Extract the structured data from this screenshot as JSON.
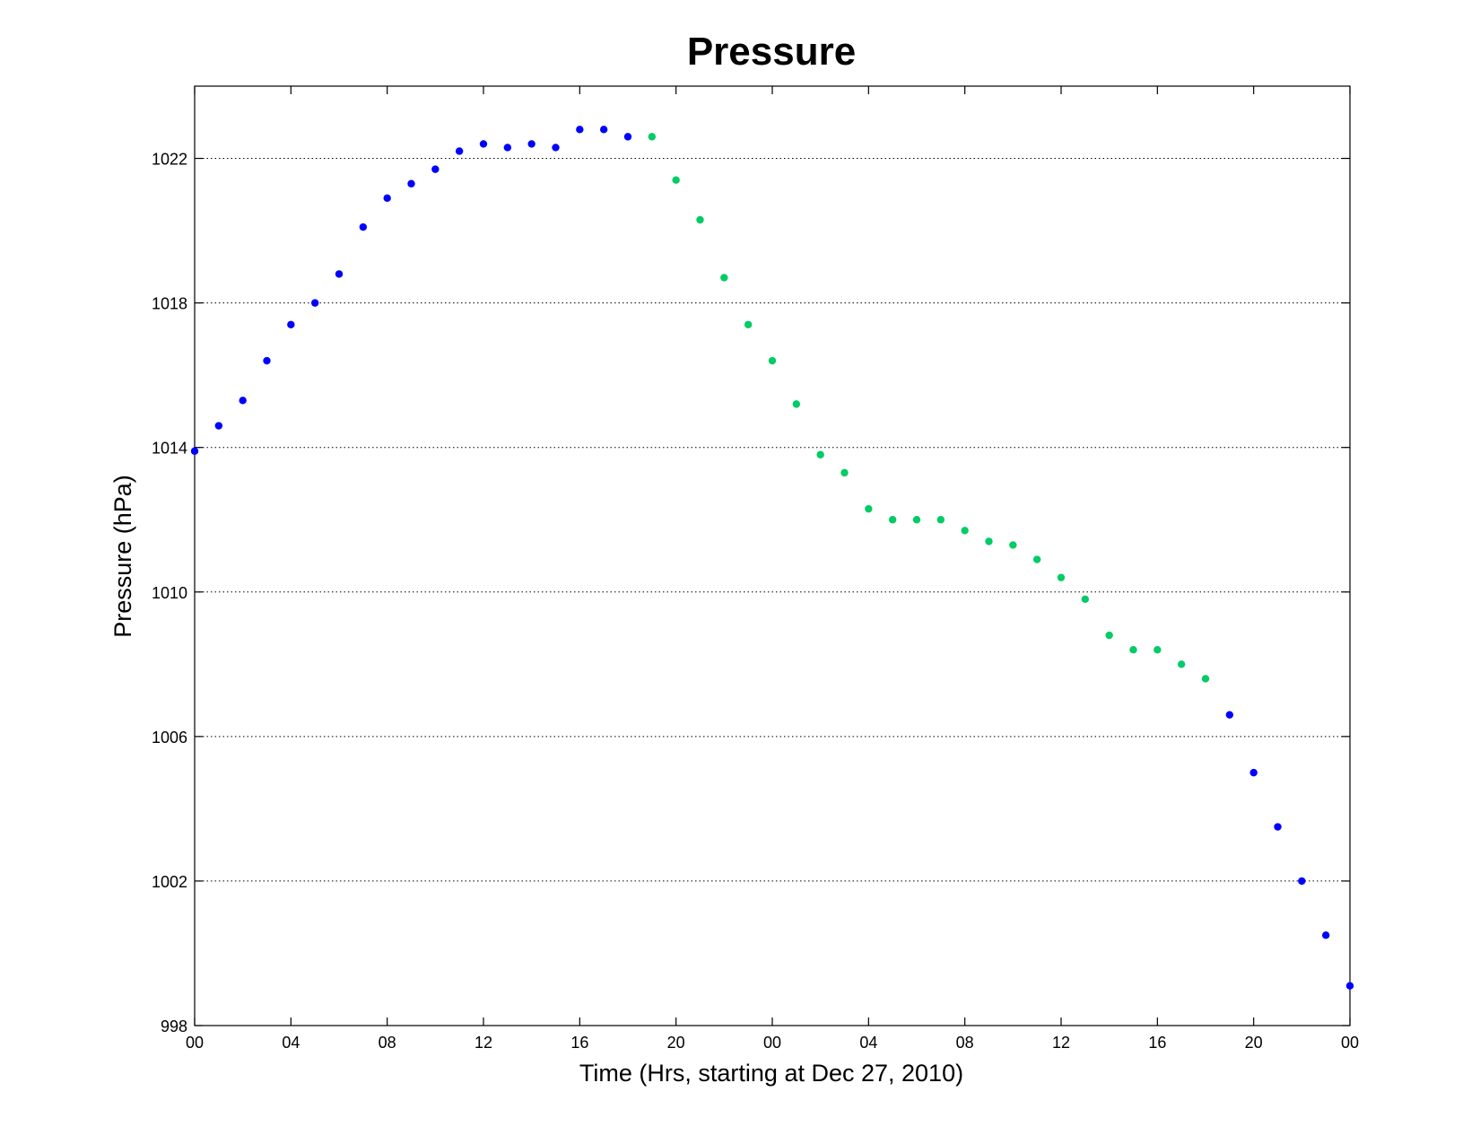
{
  "chart_data": {
    "type": "scatter",
    "title": "Pressure",
    "xlabel": "Time (Hrs, starting at Dec 27, 2010)",
    "ylabel": "Pressure (hPa)",
    "xlim": [
      0,
      48
    ],
    "ylim": [
      998,
      1024
    ],
    "grid": "horizontal dotted",
    "legend": "none",
    "x_ticks": [
      {
        "x": 0,
        "label": "00"
      },
      {
        "x": 4,
        "label": "04"
      },
      {
        "x": 8,
        "label": "08"
      },
      {
        "x": 12,
        "label": "12"
      },
      {
        "x": 16,
        "label": "16"
      },
      {
        "x": 20,
        "label": "20"
      },
      {
        "x": 24,
        "label": "00"
      },
      {
        "x": 28,
        "label": "04"
      },
      {
        "x": 32,
        "label": "08"
      },
      {
        "x": 36,
        "label": "12"
      },
      {
        "x": 40,
        "label": "16"
      },
      {
        "x": 44,
        "label": "20"
      },
      {
        "x": 48,
        "label": "00"
      }
    ],
    "y_ticks": [
      998,
      1002,
      1006,
      1010,
      1014,
      1018,
      1022
    ],
    "series": [
      {
        "color": "#0000ff",
        "points": [
          [
            0,
            1013.9
          ],
          [
            1,
            1014.6
          ],
          [
            2,
            1015.3
          ],
          [
            3,
            1016.4
          ],
          [
            4,
            1017.4
          ],
          [
            5,
            1018.0
          ],
          [
            6,
            1018.8
          ],
          [
            7,
            1020.1
          ],
          [
            8,
            1020.9
          ],
          [
            9,
            1021.3
          ],
          [
            10,
            1021.7
          ],
          [
            11,
            1022.2
          ],
          [
            12,
            1022.4
          ],
          [
            13,
            1022.3
          ],
          [
            14,
            1022.4
          ],
          [
            15,
            1022.3
          ],
          [
            16,
            1022.8
          ],
          [
            17,
            1022.8
          ],
          [
            18,
            1022.6
          ],
          [
            43,
            1006.6
          ],
          [
            44,
            1005.0
          ],
          [
            45,
            1003.5
          ],
          [
            46,
            1002.0
          ],
          [
            47,
            1000.5
          ],
          [
            48,
            999.1
          ]
        ]
      },
      {
        "color": "#00cc66",
        "points": [
          [
            19,
            1022.6
          ],
          [
            20,
            1021.4
          ],
          [
            21,
            1020.3
          ],
          [
            22,
            1018.7
          ],
          [
            23,
            1017.4
          ],
          [
            24,
            1016.4
          ],
          [
            25,
            1015.2
          ],
          [
            26,
            1013.8
          ],
          [
            27,
            1013.3
          ],
          [
            28,
            1012.3
          ],
          [
            29,
            1012.0
          ],
          [
            30,
            1012.0
          ],
          [
            31,
            1012.0
          ],
          [
            32,
            1011.7
          ],
          [
            33,
            1011.4
          ],
          [
            34,
            1011.3
          ],
          [
            35,
            1010.9
          ],
          [
            36,
            1010.4
          ],
          [
            37,
            1009.8
          ],
          [
            38,
            1008.8
          ],
          [
            39,
            1008.4
          ],
          [
            40,
            1008.4
          ],
          [
            41,
            1008.0
          ],
          [
            42,
            1007.6
          ]
        ]
      }
    ]
  }
}
